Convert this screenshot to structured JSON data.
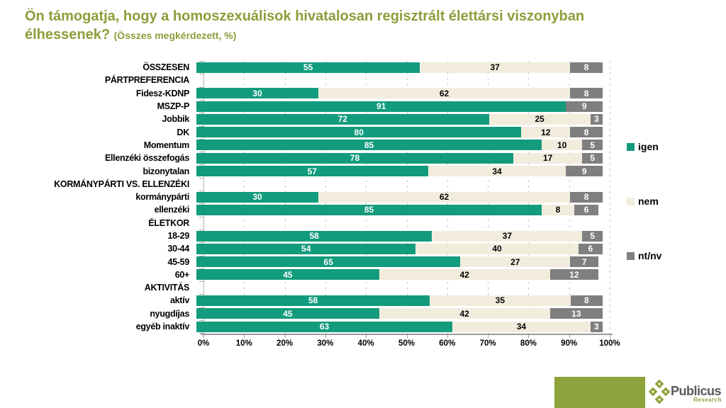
{
  "title": {
    "main": "Ön támogatja, hogy a homoszexuálisok hivatalosan regisztrált élettársi viszonyban élhessenek?",
    "subtitle": "(Összes megkérdezett, %)"
  },
  "colors": {
    "igen": "#129b7d",
    "nem": "#f2ecdd",
    "ntnv": "#7f7f7f",
    "title": "#8c9e3a",
    "olive": "#8ea33c"
  },
  "legend": [
    {
      "label": "igen",
      "key": "igen"
    },
    {
      "label": "nem",
      "key": "nem"
    },
    {
      "label": "nt/nv",
      "key": "ntnv"
    }
  ],
  "x_axis": {
    "ticks": [
      "0%",
      "10%",
      "20%",
      "30%",
      "40%",
      "50%",
      "60%",
      "70%",
      "80%",
      "90%",
      "100%"
    ],
    "min": 0,
    "max": 100
  },
  "chart_data": {
    "type": "bar",
    "stacked": true,
    "orientation": "horizontal",
    "series_names": [
      "igen",
      "nem",
      "nt/nv"
    ],
    "series_keys": [
      "igen",
      "nem",
      "ntnv"
    ],
    "xlim": [
      0,
      100
    ],
    "grid": "dashed-vertical",
    "legend_position": "right",
    "rows": [
      {
        "label": "ÖSSZESEN",
        "type": "bar",
        "values": [
          55,
          37,
          8
        ]
      },
      {
        "label": "PÁRTPREFERENCIA",
        "type": "header",
        "values": null
      },
      {
        "label": "Fidesz-KDNP",
        "type": "bar",
        "values": [
          30,
          62,
          8
        ]
      },
      {
        "label": "MSZP-P",
        "type": "bar",
        "values": [
          91,
          0,
          9
        ]
      },
      {
        "label": "Jobbik",
        "type": "bar",
        "values": [
          72,
          25,
          3
        ]
      },
      {
        "label": "DK",
        "type": "bar",
        "values": [
          80,
          12,
          8
        ]
      },
      {
        "label": "Momentum",
        "type": "bar",
        "values": [
          85,
          10,
          5
        ]
      },
      {
        "label": "Ellenzéki összefogás",
        "type": "bar",
        "values": [
          78,
          17,
          5
        ]
      },
      {
        "label": "bizonytalan",
        "type": "bar",
        "values": [
          57,
          34,
          9
        ]
      },
      {
        "label": "KORMÁNYPÁRTI VS. ELLENZÉKI",
        "type": "header",
        "values": null
      },
      {
        "label": "kormánypárti",
        "type": "bar",
        "values": [
          30,
          62,
          8
        ]
      },
      {
        "label": "ellenzéki",
        "type": "bar",
        "values": [
          85,
          8,
          6
        ]
      },
      {
        "label": "ÉLETKOR",
        "type": "header",
        "values": null
      },
      {
        "label": "18-29",
        "type": "bar",
        "values": [
          58,
          37,
          5
        ]
      },
      {
        "label": "30-44",
        "type": "bar",
        "values": [
          54,
          40,
          6
        ]
      },
      {
        "label": "45-59",
        "type": "bar",
        "values": [
          65,
          27,
          7
        ]
      },
      {
        "label": "60+",
        "type": "bar",
        "values": [
          45,
          42,
          12
        ]
      },
      {
        "label": "AKTIVITÁS",
        "type": "header",
        "values": null
      },
      {
        "label": "aktív",
        "type": "bar",
        "values": [
          58,
          35,
          8
        ]
      },
      {
        "label": "nyugdíjas",
        "type": "bar",
        "values": [
          45,
          42,
          13
        ]
      },
      {
        "label": "egyéb inaktív",
        "type": "bar",
        "values": [
          63,
          34,
          3
        ]
      }
    ]
  },
  "footer": {
    "brand": "Publicus",
    "brand_sub": "Research"
  }
}
